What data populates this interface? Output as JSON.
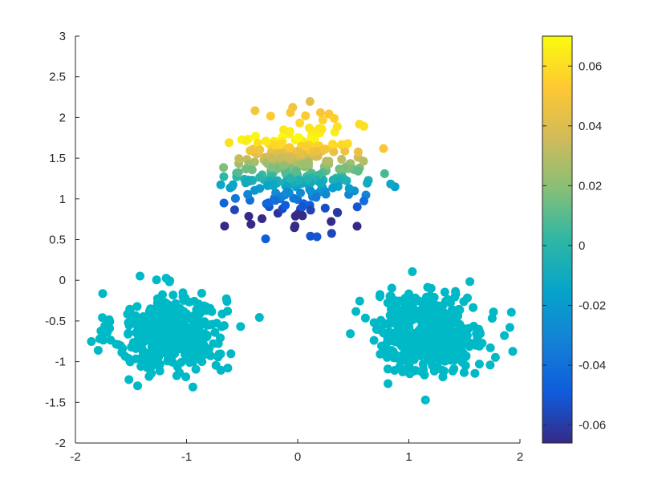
{
  "chart_data": {
    "type": "scatter",
    "title": "",
    "xlabel": "",
    "ylabel": "",
    "xlim": [
      -2,
      2
    ],
    "ylim": [
      -2,
      3
    ],
    "x_ticks": [
      -2,
      -1,
      0,
      1,
      2
    ],
    "y_ticks": [
      -2,
      -1.5,
      -1,
      -0.5,
      0,
      0.5,
      1,
      1.5,
      2,
      2.5,
      3
    ],
    "x_tick_labels": [
      "-2",
      "-1",
      "0",
      "1",
      "2"
    ],
    "y_tick_labels": [
      "-2",
      "-1.5",
      "-1",
      "-0.5",
      "0",
      "0.5",
      "1",
      "1.5",
      "2",
      "2.5",
      "3"
    ],
    "grid": false,
    "colormap": "parula",
    "colorbar": {
      "placement": "right",
      "clim": [
        -0.066,
        0.07
      ],
      "ticks": [
        -0.06,
        -0.04,
        -0.02,
        0,
        0.02,
        0.04,
        0.06
      ],
      "tick_labels": [
        "-0.06",
        "-0.04",
        "-0.02",
        "0",
        "0.02",
        "0.04",
        "0.06"
      ]
    },
    "clusters": [
      {
        "center": [
          -1.15,
          -0.65
        ],
        "spread": 0.25,
        "count": 380,
        "value_rule": "constant",
        "value": 0
      },
      {
        "center": [
          1.2,
          -0.65
        ],
        "spread": 0.25,
        "count": 420,
        "value_rule": "constant",
        "value": 0
      },
      {
        "center": [
          0.0,
          1.35
        ],
        "spread": 0.3,
        "count": 320,
        "value_rule": "varies-with-y",
        "value_min": -0.066,
        "value_max": 0.07,
        "value_min_at_y": 0.8,
        "value_max_at_y": 1.75
      }
    ],
    "marker_fill": "#00b9c6"
  }
}
